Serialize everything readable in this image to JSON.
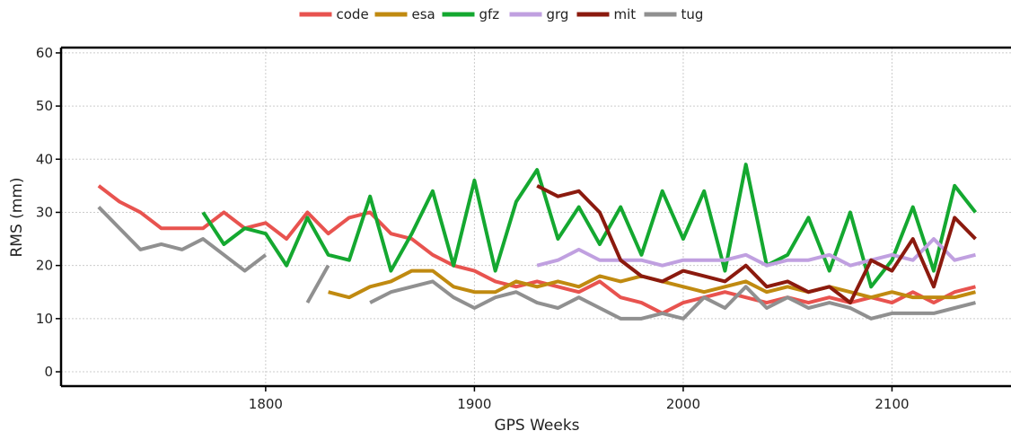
{
  "chart_data": {
    "type": "line",
    "xlabel": "GPS Weeks",
    "ylabel": "RMS (mm)",
    "x": [
      1720,
      1730,
      1740,
      1750,
      1760,
      1770,
      1780,
      1790,
      1800,
      1810,
      1820,
      1830,
      1840,
      1850,
      1860,
      1870,
      1880,
      1890,
      1900,
      1910,
      1920,
      1930,
      1940,
      1950,
      1960,
      1970,
      1980,
      1990,
      2000,
      2010,
      2020,
      2030,
      2040,
      2050,
      2060,
      2070,
      2080,
      2090,
      2100,
      2110,
      2120,
      2130,
      2140
    ],
    "series": [
      {
        "name": "code",
        "color": "#e8534f",
        "values": [
          35,
          32,
          30,
          27,
          27,
          27,
          30,
          27,
          28,
          25,
          30,
          26,
          29,
          30,
          26,
          25,
          22,
          20,
          19,
          17,
          16,
          17,
          16,
          15,
          17,
          14,
          13,
          11,
          13,
          14,
          15,
          14,
          13,
          14,
          13,
          14,
          13,
          14,
          13,
          15,
          13,
          15,
          16
        ]
      },
      {
        "name": "esa",
        "color": "#c08a10",
        "values": [
          null,
          null,
          null,
          null,
          null,
          null,
          null,
          null,
          null,
          null,
          null,
          15,
          14,
          16,
          17,
          19,
          19,
          16,
          15,
          15,
          17,
          16,
          17,
          16,
          18,
          17,
          18,
          17,
          16,
          15,
          16,
          17,
          15,
          16,
          15,
          16,
          15,
          14,
          15,
          14,
          14,
          14,
          15
        ]
      },
      {
        "name": "gfz",
        "color": "#14a830",
        "values": [
          null,
          null,
          null,
          null,
          null,
          30,
          24,
          27,
          26,
          20,
          29,
          22,
          21,
          33,
          19,
          26,
          34,
          20,
          36,
          19,
          32,
          38,
          25,
          31,
          24,
          31,
          22,
          34,
          25,
          34,
          19,
          39,
          20,
          22,
          29,
          19,
          30,
          16,
          21,
          31,
          19,
          35,
          30
        ]
      },
      {
        "name": "grg",
        "color": "#c0a0e0",
        "values": [
          null,
          null,
          null,
          null,
          null,
          null,
          null,
          null,
          null,
          null,
          null,
          null,
          null,
          null,
          null,
          null,
          null,
          null,
          null,
          null,
          null,
          20,
          21,
          23,
          21,
          21,
          21,
          20,
          21,
          21,
          21,
          22,
          20,
          21,
          21,
          22,
          20,
          21,
          22,
          21,
          25,
          21,
          22
        ]
      },
      {
        "name": "mit",
        "color": "#8b1a0e",
        "values": [
          null,
          null,
          null,
          null,
          null,
          null,
          null,
          null,
          null,
          null,
          null,
          null,
          null,
          null,
          null,
          null,
          null,
          null,
          null,
          null,
          null,
          35,
          33,
          34,
          30,
          21,
          18,
          17,
          19,
          18,
          17,
          20,
          16,
          17,
          15,
          16,
          13,
          21,
          19,
          25,
          16,
          29,
          25
        ]
      },
      {
        "name": "tug",
        "color": "#909090",
        "values": [
          31,
          27,
          23,
          24,
          23,
          25,
          22,
          19,
          22,
          null,
          13,
          20,
          null,
          13,
          15,
          16,
          17,
          14,
          12,
          14,
          15,
          13,
          12,
          14,
          12,
          10,
          10,
          11,
          10,
          14,
          12,
          16,
          12,
          14,
          12,
          13,
          12,
          10,
          11,
          11,
          11,
          12,
          13
        ]
      }
    ],
    "xlim": [
      1702,
      2157
    ],
    "ylim": [
      -2.7,
      61
    ],
    "xticks": [
      1800,
      1900,
      2000,
      2100
    ],
    "yticks": [
      0,
      10,
      20,
      30,
      40,
      50,
      60
    ],
    "grid": true,
    "legend": "top"
  }
}
